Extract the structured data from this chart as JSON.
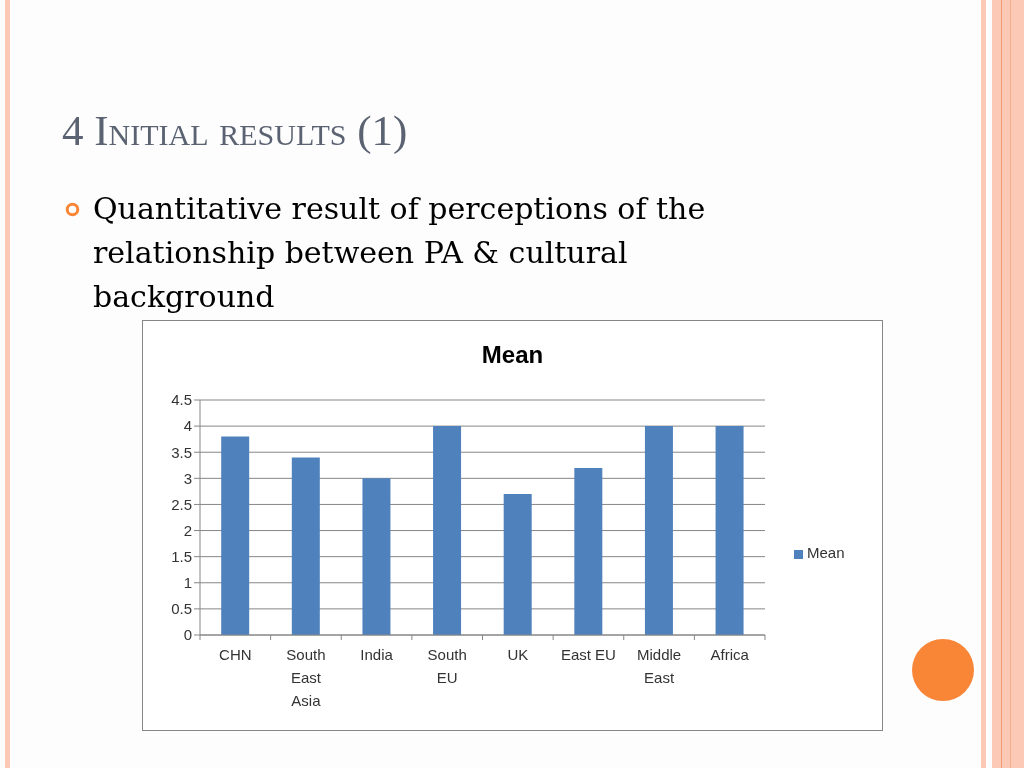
{
  "chart_data": {
    "type": "bar",
    "title": "Mean",
    "categories": [
      "CHN",
      "South East Asia",
      "India",
      "South EU",
      "UK",
      "East EU",
      "Middle East",
      "Africa"
    ],
    "series": [
      {
        "name": "Mean",
        "color": "#4f81bd",
        "values": [
          3.8,
          3.4,
          3,
          4,
          2.7,
          3.2,
          4,
          4
        ]
      }
    ],
    "ylim": [
      0,
      4.5
    ],
    "yticks": [
      0,
      0.5,
      1,
      1.5,
      2,
      2.5,
      3,
      3.5,
      4,
      4.5
    ],
    "grid": "y",
    "legend": "right",
    "annotations": [
      "4 Initial results (1)",
      "Quantitative result of perceptions of the relationship between PA & cultural background"
    ]
  }
}
